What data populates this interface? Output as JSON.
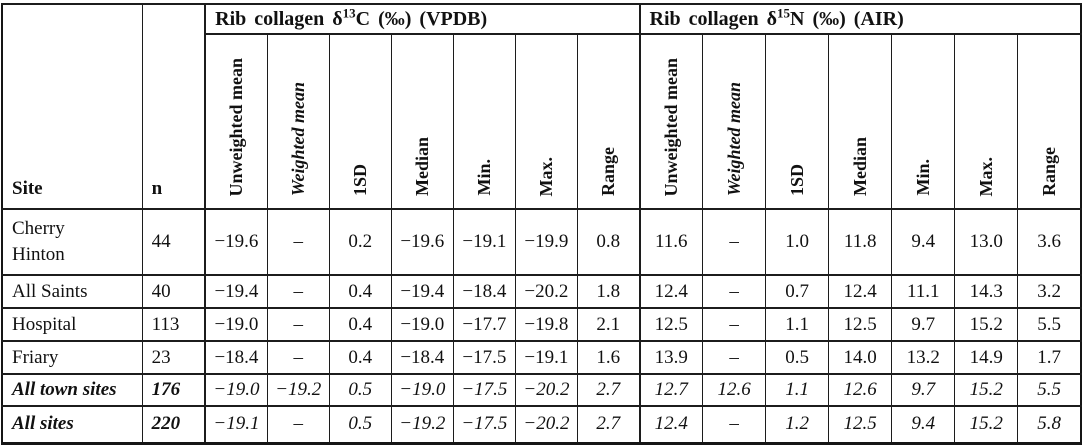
{
  "table": {
    "site_header": "Site",
    "n_header": "n",
    "groups": [
      {
        "id": "d13c",
        "prefix": "Rib collagen δ",
        "sup": "13",
        "suffix": "C (‰) (VPDB)"
      },
      {
        "id": "d15n",
        "prefix": "Rib collagen δ",
        "sup": "15",
        "suffix": "N (‰) (AIR)"
      }
    ],
    "stat_headers": [
      "Unweighted mean",
      "Weighted mean",
      "1SD",
      "Median",
      "Min.",
      "Max.",
      "Range"
    ],
    "rows": [
      {
        "site": "Cherry Hinton",
        "n": "44",
        "wrap": true,
        "emphasis": false,
        "c13": [
          "−19.6",
          "–",
          "0.2",
          "−19.6",
          "−19.1",
          "−19.9",
          "0.8"
        ],
        "n15": [
          "11.6",
          "–",
          "1.0",
          "11.8",
          "9.4",
          "13.0",
          "3.6"
        ]
      },
      {
        "site": "All Saints",
        "n": "40",
        "wrap": false,
        "emphasis": false,
        "c13": [
          "−19.4",
          "–",
          "0.4",
          "−19.4",
          "−18.4",
          "−20.2",
          "1.8"
        ],
        "n15": [
          "12.4",
          "–",
          "0.7",
          "12.4",
          "11.1",
          "14.3",
          "3.2"
        ]
      },
      {
        "site": "Hospital",
        "n": "113",
        "wrap": false,
        "emphasis": false,
        "c13": [
          "−19.0",
          "–",
          "0.4",
          "−19.0",
          "−17.7",
          "−19.8",
          "2.1"
        ],
        "n15": [
          "12.5",
          "–",
          "1.1",
          "12.5",
          "9.7",
          "15.2",
          "5.5"
        ]
      },
      {
        "site": "Friary",
        "n": "23",
        "wrap": false,
        "emphasis": false,
        "c13": [
          "−18.4",
          "–",
          "0.4",
          "−18.4",
          "−17.5",
          "−19.1",
          "1.6"
        ],
        "n15": [
          "13.9",
          "–",
          "0.5",
          "14.0",
          "13.2",
          "14.9",
          "1.7"
        ]
      },
      {
        "site": "All town sites",
        "n": "176",
        "wrap": false,
        "emphasis": true,
        "c13": [
          "−19.0",
          "−19.2",
          "0.5",
          "−19.0",
          "−17.5",
          "−20.2",
          "2.7"
        ],
        "n15": [
          "12.7",
          "12.6",
          "1.1",
          "12.6",
          "9.7",
          "15.2",
          "5.5"
        ]
      },
      {
        "site": "All sites",
        "n": "220",
        "wrap": false,
        "emphasis": true,
        "c13": [
          "−19.1",
          "–",
          "0.5",
          "−19.2",
          "−17.5",
          "−20.2",
          "2.7"
        ],
        "n15": [
          "12.4",
          "–",
          "1.2",
          "12.5",
          "9.4",
          "15.2",
          "5.8"
        ]
      }
    ],
    "colors": {
      "border": "#1c1c1c",
      "background": "#ffffff",
      "text": "#111111"
    }
  }
}
